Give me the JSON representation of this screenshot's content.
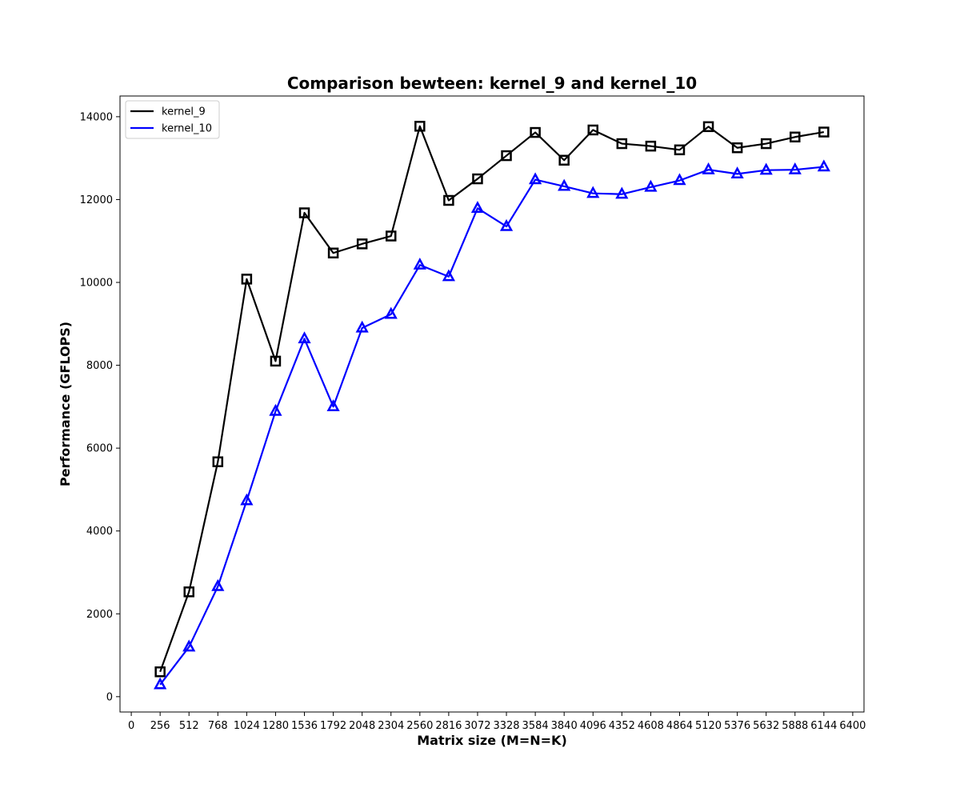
{
  "chart_data": {
    "type": "line",
    "title": "Comparison bewteen: kernel_9 and kernel_10",
    "xlabel": "Matrix size (M=N=K)",
    "ylabel": "Performance (GFLOPS)",
    "xlim": [
      -100,
      6500
    ],
    "ylim": [
      -370,
      14500
    ],
    "xticks": [
      0,
      256,
      512,
      768,
      1024,
      1280,
      1536,
      1792,
      2048,
      2304,
      2560,
      2816,
      3072,
      3328,
      3584,
      3840,
      4096,
      4352,
      4608,
      4864,
      5120,
      5376,
      5632,
      5888,
      6144,
      6400
    ],
    "yticks": [
      0,
      2000,
      4000,
      6000,
      8000,
      10000,
      12000,
      14000
    ],
    "grid": false,
    "legend_position": "top-left",
    "x": [
      256,
      512,
      768,
      1024,
      1280,
      1536,
      1792,
      2048,
      2304,
      2560,
      2816,
      3072,
      3328,
      3584,
      3840,
      4096,
      4352,
      4608,
      4864,
      5120,
      5376,
      5632,
      5888,
      6144
    ],
    "series": [
      {
        "name": "kernel_9",
        "color": "#000000",
        "marker": "square",
        "values": [
          600,
          2530,
          5670,
          10080,
          8100,
          11680,
          10710,
          10930,
          11120,
          13770,
          11980,
          12500,
          13060,
          13620,
          12950,
          13680,
          13350,
          13290,
          13200,
          13760,
          13250,
          13350,
          13510,
          13630
        ]
      },
      {
        "name": "kernel_10",
        "color": "#0000ff",
        "marker": "triangle",
        "values": [
          290,
          1200,
          2660,
          4730,
          6890,
          8640,
          7000,
          8900,
          9230,
          10420,
          10140,
          11790,
          11350,
          12480,
          12320,
          12150,
          12130,
          12300,
          12460,
          12720,
          12620,
          12710,
          12720,
          12790
        ]
      }
    ]
  }
}
